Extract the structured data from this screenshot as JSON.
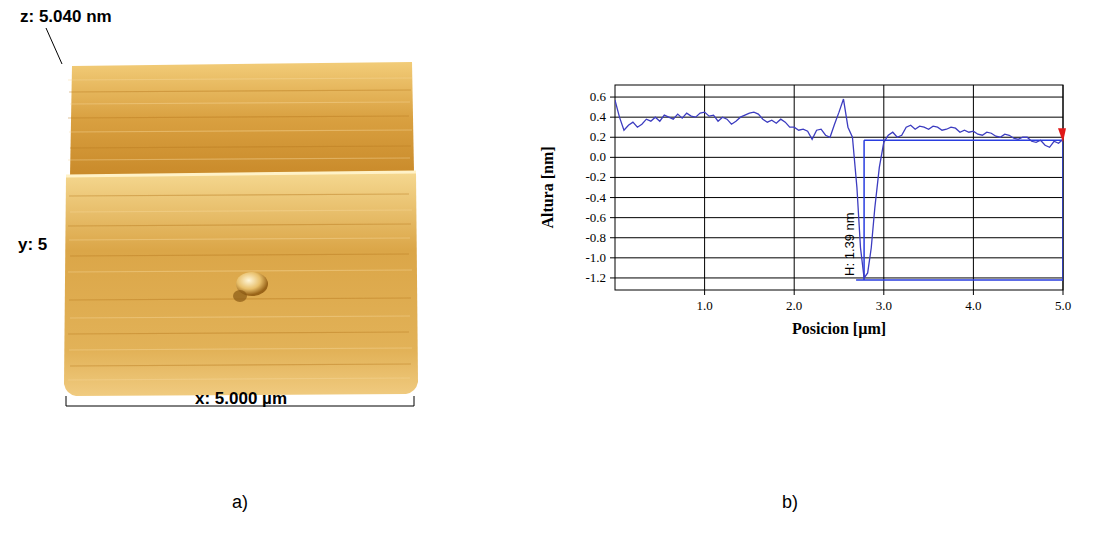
{
  "chart_data": {
    "type": "line",
    "x_label": "Posicion [µm]",
    "y_label": "Altura [nm]",
    "x": [
      0.0,
      0.05,
      0.1,
      0.15,
      0.2,
      0.25,
      0.3,
      0.35,
      0.4,
      0.45,
      0.5,
      0.55,
      0.6,
      0.65,
      0.7,
      0.75,
      0.8,
      0.85,
      0.9,
      0.95,
      1.0,
      1.05,
      1.1,
      1.15,
      1.2,
      1.25,
      1.3,
      1.35,
      1.4,
      1.45,
      1.5,
      1.55,
      1.6,
      1.65,
      1.7,
      1.75,
      1.8,
      1.85,
      1.9,
      1.95,
      2.0,
      2.05,
      2.1,
      2.15,
      2.2,
      2.25,
      2.3,
      2.35,
      2.4,
      2.45,
      2.5,
      2.55,
      2.6,
      2.65,
      2.7,
      2.74,
      2.78,
      2.82,
      2.86,
      2.9,
      2.95,
      3.0,
      3.05,
      3.1,
      3.15,
      3.2,
      3.25,
      3.3,
      3.35,
      3.4,
      3.45,
      3.5,
      3.55,
      3.6,
      3.65,
      3.7,
      3.75,
      3.8,
      3.85,
      3.9,
      3.95,
      4.0,
      4.05,
      4.1,
      4.15,
      4.2,
      4.25,
      4.3,
      4.35,
      4.4,
      4.45,
      4.5,
      4.55,
      4.6,
      4.65,
      4.7,
      4.75,
      4.8,
      4.85,
      4.9,
      4.95,
      5.0
    ],
    "values": [
      0.57,
      0.4,
      0.27,
      0.32,
      0.35,
      0.3,
      0.33,
      0.38,
      0.36,
      0.4,
      0.36,
      0.42,
      0.4,
      0.38,
      0.43,
      0.39,
      0.44,
      0.41,
      0.4,
      0.44,
      0.45,
      0.41,
      0.42,
      0.36,
      0.4,
      0.38,
      0.33,
      0.36,
      0.4,
      0.42,
      0.44,
      0.45,
      0.43,
      0.38,
      0.35,
      0.37,
      0.34,
      0.38,
      0.35,
      0.3,
      0.3,
      0.27,
      0.28,
      0.26,
      0.18,
      0.27,
      0.28,
      0.22,
      0.2,
      0.33,
      0.45,
      0.58,
      0.3,
      0.2,
      -0.3,
      -0.9,
      -1.2,
      -1.15,
      -0.9,
      -0.5,
      -0.1,
      0.15,
      0.22,
      0.25,
      0.2,
      0.22,
      0.3,
      0.32,
      0.28,
      0.31,
      0.3,
      0.28,
      0.31,
      0.3,
      0.27,
      0.28,
      0.3,
      0.29,
      0.25,
      0.27,
      0.25,
      0.26,
      0.23,
      0.22,
      0.25,
      0.24,
      0.21,
      0.2,
      0.23,
      0.22,
      0.19,
      0.18,
      0.2,
      0.2,
      0.16,
      0.15,
      0.17,
      0.12,
      0.1,
      0.16,
      0.14,
      0.18
    ],
    "color": "#3c3cc0",
    "xlim": [
      0,
      5
    ],
    "ylim": [
      -1.32,
      0.72
    ],
    "xticks": [
      {
        "value": 1,
        "label": "1.0"
      },
      {
        "value": 2,
        "label": "2.0"
      },
      {
        "value": 3,
        "label": "3.0"
      },
      {
        "value": 4,
        "label": "4.0"
      },
      {
        "value": 5,
        "label": "5.0"
      }
    ],
    "yticks": [
      0.6,
      0.4,
      0.2,
      {
        "value": 0,
        "label": "0.0"
      },
      -0.2,
      -0.4,
      -0.6,
      -0.8,
      {
        "value": -1,
        "label": "-1.0"
      },
      -1.2
    ],
    "grid": true,
    "annotations": [
      {
        "text": "H: 1.39 nm",
        "x": [
          2.78,
          5.0
        ],
        "y": [
          -1.22,
          0.17
        ],
        "color": "#2a3ee0",
        "marker_color": "#e01818"
      }
    ]
  },
  "afm_image": {
    "z_label": "z: 5.040 nm",
    "y_label": "y: 5",
    "x_label": "x: 5.000 µm"
  },
  "panel_labels": [
    "a)",
    "b)"
  ]
}
